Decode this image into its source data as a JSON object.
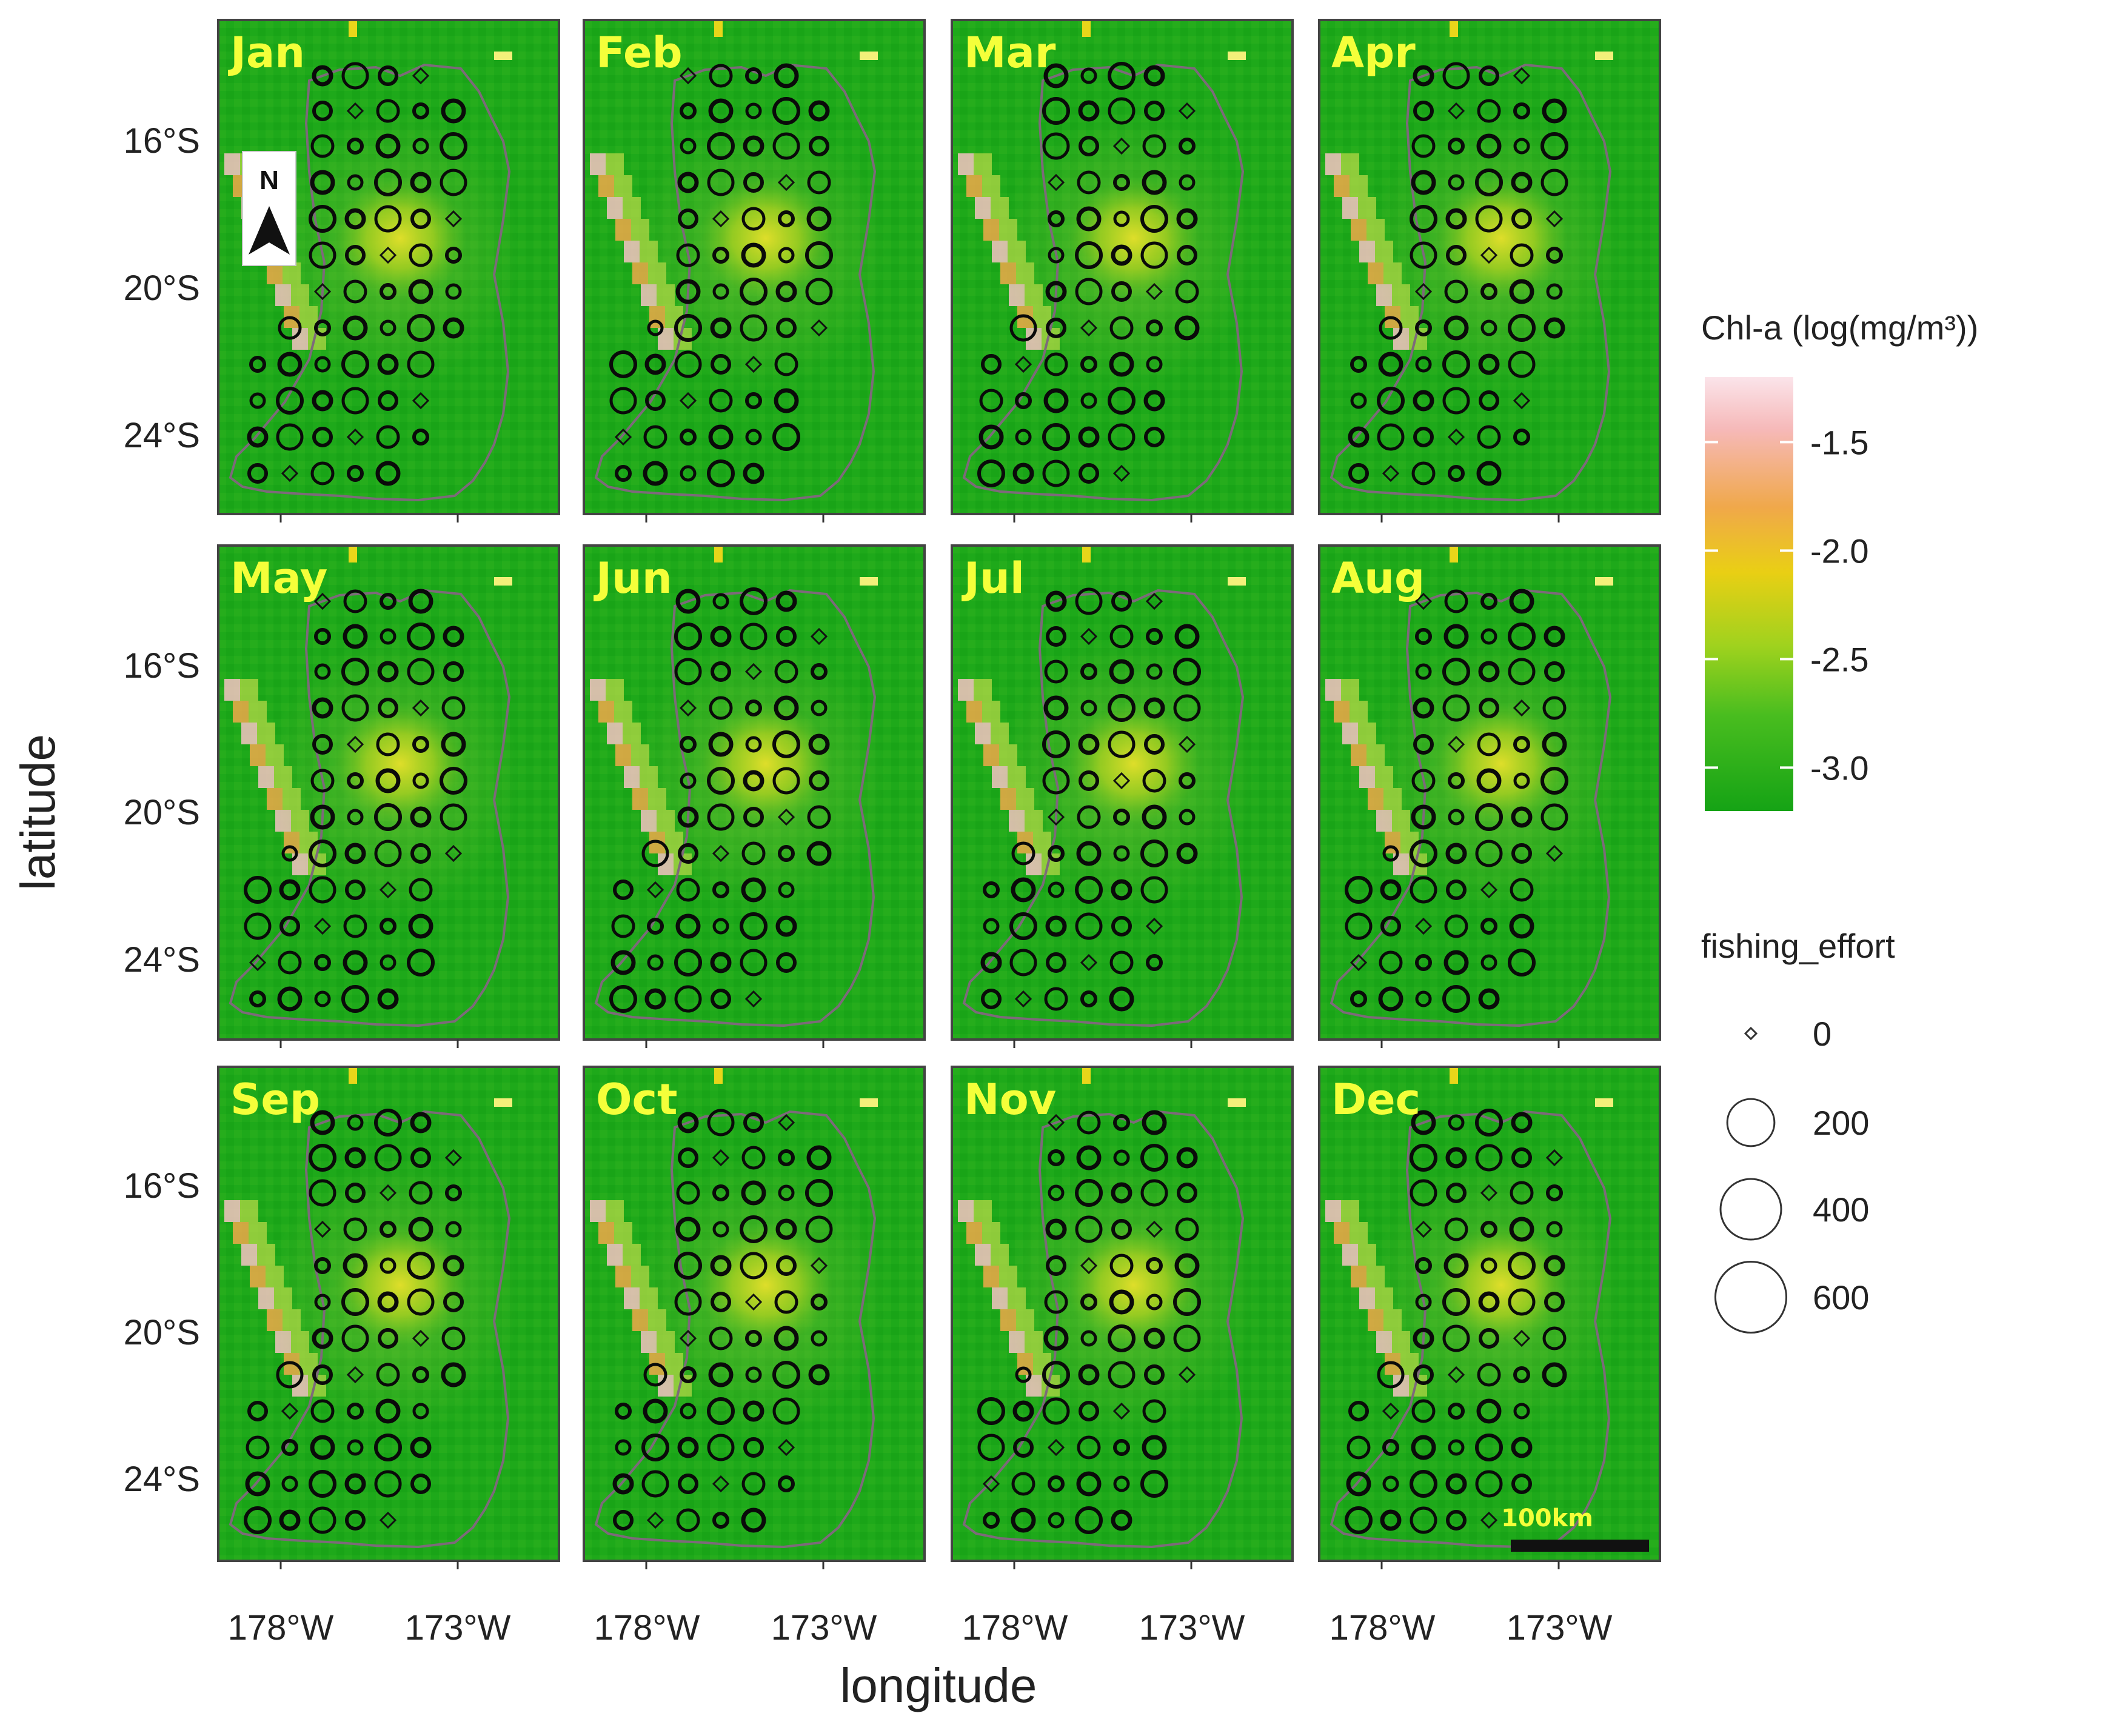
{
  "figure": {
    "x_axis_title": "longitude",
    "y_axis_title": "latitude",
    "x_tick_labels": [
      "178°W",
      "173°W"
    ],
    "y_tick_labels": [
      "16°S",
      "20°S",
      "24°S"
    ],
    "north_arrow_label": "N",
    "scale_bar_label": "100km"
  },
  "panels": [
    {
      "month": "Jan"
    },
    {
      "month": "Feb"
    },
    {
      "month": "Mar"
    },
    {
      "month": "Apr"
    },
    {
      "month": "May"
    },
    {
      "month": "Jun"
    },
    {
      "month": "Jul"
    },
    {
      "month": "Aug"
    },
    {
      "month": "Sep"
    },
    {
      "month": "Oct"
    },
    {
      "month": "Nov"
    },
    {
      "month": "Dec"
    }
  ],
  "legend": {
    "chla_title": "Chl-a (log(mg/m³))",
    "chla_ticks": [
      "-1.5",
      "-2.0",
      "-2.5",
      "-3.0"
    ],
    "chla_values": [
      -1.5,
      -2.0,
      -2.5,
      -3.0
    ],
    "chla_range": [
      -3.2,
      -1.2
    ],
    "effort_title": "fishing_effort",
    "effort_values": [
      0,
      200,
      400,
      600
    ],
    "effort_labels": [
      "0",
      "200",
      "400",
      "600"
    ]
  },
  "colors": {
    "ocean_low": "#1aa817",
    "ocean_mid": "#4cc21f",
    "chla_high": "#f6c3c3",
    "chla_orange": "#f0a84a",
    "chla_yellow": "#e8d61a",
    "boundary": "#7d6a7a",
    "month_label": "#f4ff3a"
  }
}
